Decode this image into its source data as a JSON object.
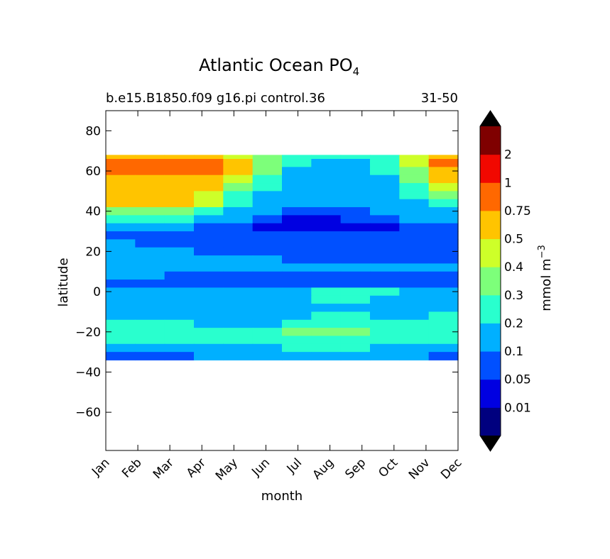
{
  "chart_data": {
    "type": "heatmap",
    "title": {
      "main": "Atlantic Ocean PO",
      "subscript": "4"
    },
    "subtitle_left": "b.e15.B1850.f09 g16.pi control.36",
    "subtitle_right": "31-50",
    "xlabel": "month",
    "ylabel": "latitude",
    "x_ticks": [
      "Jan",
      "Feb",
      "Mar",
      "Apr",
      "May",
      "Jun",
      "Jul",
      "Aug",
      "Sep",
      "Oct",
      "Nov",
      "Dec"
    ],
    "y_ticks": [
      "80",
      "60",
      "40",
      "20",
      "0",
      "−20",
      "−40",
      "−60"
    ],
    "y_tick_values": [
      80,
      60,
      40,
      20,
      0,
      -20,
      -40,
      -60
    ],
    "ylim": [
      -79,
      90
    ],
    "data_lat_range": [
      -34,
      68
    ],
    "colorbar": {
      "label": "mmol m",
      "label_superscript": "−3",
      "levels": [
        "0.01",
        "0.05",
        "0.1",
        "0.2",
        "0.3",
        "0.4",
        "0.5",
        "0.75",
        "1",
        "2"
      ],
      "colors": [
        "#00007f",
        "#0000e1",
        "#0050ff",
        "#00b0ff",
        "#29ffce",
        "#7dff7a",
        "#ceff29",
        "#ffc400",
        "#ff6800",
        "#f10800",
        "#7f0000"
      ],
      "extend": "both"
    },
    "lat": [
      68,
      64,
      60,
      56,
      52,
      48,
      44,
      40,
      36,
      32,
      28,
      24,
      20,
      16,
      12,
      8,
      4,
      0,
      -4,
      -8,
      -12,
      -16,
      -20,
      -24,
      -28,
      -32
    ],
    "values_level_index": [
      [
        7,
        7,
        7,
        7,
        6,
        5,
        4,
        4,
        4,
        4,
        6,
        7
      ],
      [
        8,
        8,
        8,
        8,
        7,
        5,
        4,
        3,
        3,
        4,
        6,
        8
      ],
      [
        8,
        8,
        8,
        8,
        7,
        5,
        3,
        3,
        3,
        4,
        5,
        7
      ],
      [
        7,
        7,
        7,
        7,
        6,
        4,
        3,
        3,
        3,
        3,
        5,
        7
      ],
      [
        7,
        7,
        7,
        7,
        5,
        4,
        3,
        3,
        3,
        3,
        4,
        6
      ],
      [
        7,
        7,
        7,
        6,
        4,
        3,
        3,
        3,
        3,
        3,
        4,
        5
      ],
      [
        7,
        7,
        7,
        6,
        4,
        3,
        3,
        3,
        3,
        3,
        3,
        4
      ],
      [
        5,
        5,
        5,
        4,
        3,
        3,
        2,
        2,
        2,
        3,
        3,
        3
      ],
      [
        4,
        4,
        4,
        3,
        3,
        2,
        1,
        1,
        2,
        2,
        3,
        3
      ],
      [
        3,
        3,
        3,
        2,
        2,
        1,
        1,
        1,
        1,
        1,
        2,
        2
      ],
      [
        2,
        2,
        2,
        2,
        2,
        2,
        2,
        2,
        2,
        2,
        2,
        2
      ],
      [
        3,
        2,
        2,
        2,
        2,
        2,
        2,
        2,
        2,
        2,
        2,
        2
      ],
      [
        3,
        3,
        3,
        2,
        2,
        2,
        2,
        2,
        2,
        2,
        2,
        2
      ],
      [
        3,
        3,
        3,
        3,
        3,
        3,
        2,
        2,
        2,
        2,
        2,
        2
      ],
      [
        3,
        3,
        3,
        3,
        3,
        3,
        3,
        3,
        3,
        3,
        3,
        3
      ],
      [
        3,
        3,
        2,
        2,
        2,
        2,
        2,
        2,
        2,
        2,
        2,
        2
      ],
      [
        2,
        2,
        2,
        2,
        2,
        2,
        2,
        2,
        2,
        2,
        2,
        2
      ],
      [
        3,
        3,
        3,
        3,
        3,
        3,
        3,
        4,
        4,
        4,
        3,
        3
      ],
      [
        3,
        3,
        3,
        3,
        3,
        3,
        3,
        4,
        4,
        3,
        3,
        3
      ],
      [
        3,
        3,
        3,
        3,
        3,
        3,
        3,
        3,
        3,
        3,
        3,
        3
      ],
      [
        3,
        3,
        3,
        3,
        3,
        3,
        3,
        4,
        4,
        3,
        3,
        4
      ],
      [
        4,
        4,
        4,
        3,
        3,
        3,
        4,
        4,
        4,
        4,
        4,
        4
      ],
      [
        4,
        4,
        4,
        4,
        4,
        4,
        5,
        5,
        5,
        4,
        4,
        4
      ],
      [
        4,
        4,
        4,
        4,
        4,
        4,
        4,
        4,
        4,
        4,
        4,
        4
      ],
      [
        3,
        3,
        3,
        3,
        3,
        3,
        4,
        4,
        4,
        3,
        3,
        3
      ],
      [
        2,
        2,
        2,
        3,
        3,
        3,
        3,
        3,
        3,
        3,
        3,
        2
      ]
    ]
  }
}
